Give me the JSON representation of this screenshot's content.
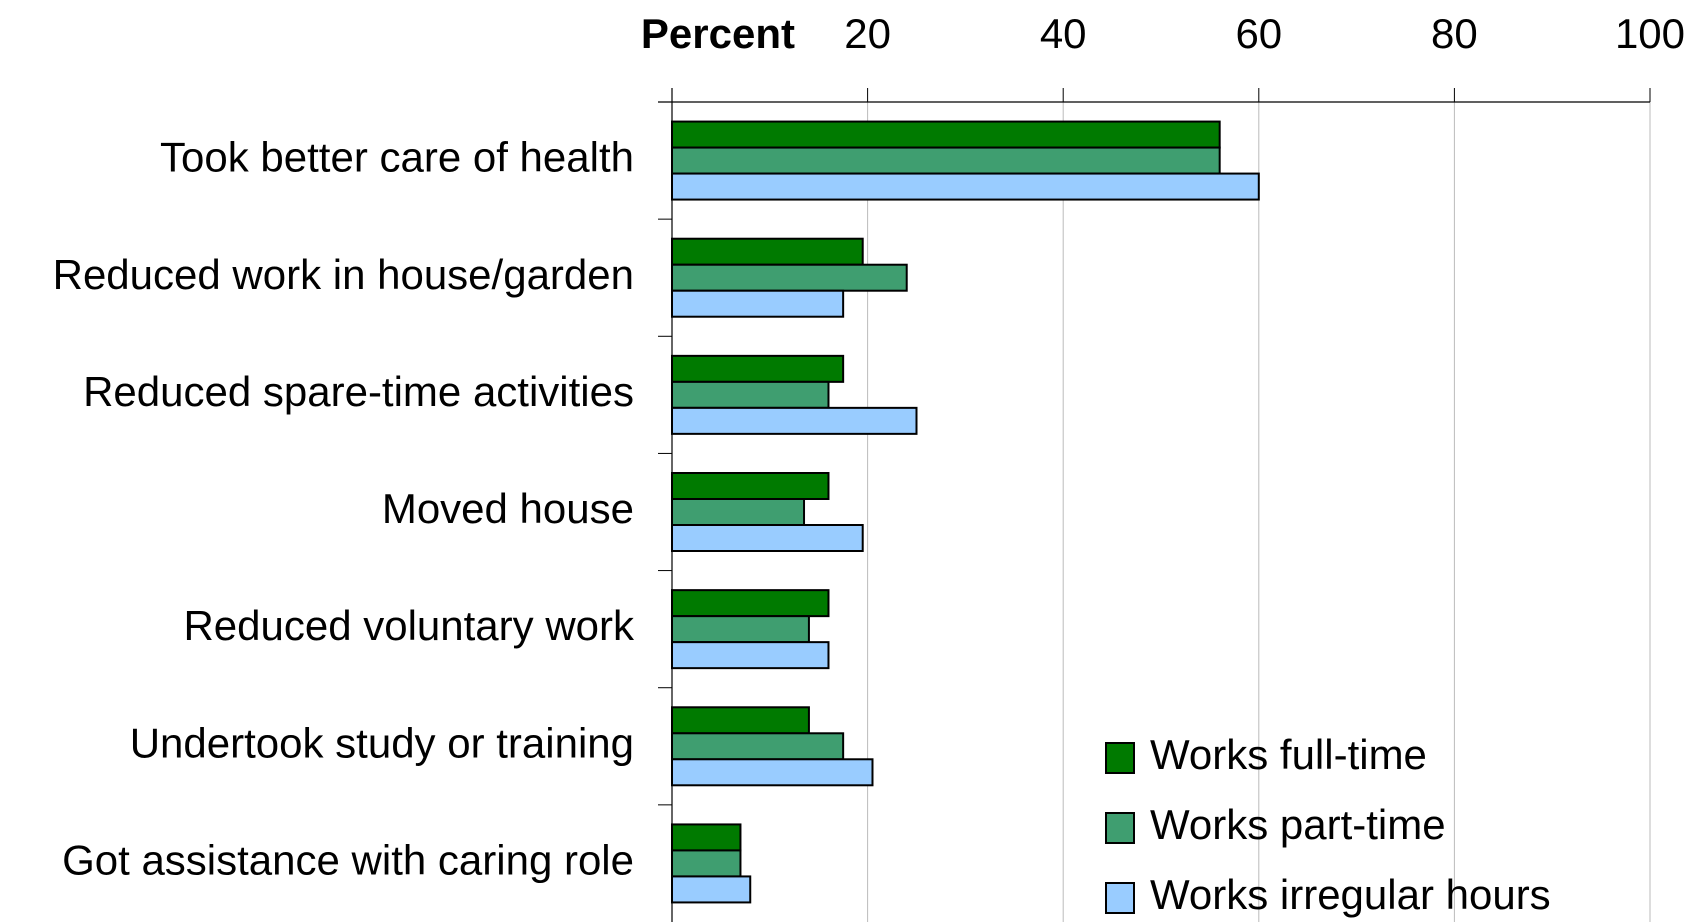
{
  "chart_data": {
    "type": "hbar",
    "xlabel": "Percent",
    "categories": [
      "Took better care of health",
      "Reduced work in house/garden",
      "Reduced spare-time activities",
      "Moved house",
      "Reduced voluntary work",
      "Undertook study or training",
      "Got assistance with caring role"
    ],
    "series": [
      {
        "name": "Works full-time",
        "color": "#007a00",
        "values": [
          56,
          19.5,
          17.5,
          16,
          16,
          14,
          7
        ]
      },
      {
        "name": "Works part-time",
        "color": "#3f9e70",
        "values": [
          56,
          24,
          16,
          13.5,
          14,
          17.5,
          7
        ]
      },
      {
        "name": "Works irregular hours",
        "color": "#99ccff",
        "values": [
          60,
          17.5,
          25,
          19.5,
          16,
          20.5,
          8
        ]
      }
    ],
    "xlim": [
      0,
      100
    ],
    "xticks": [
      20,
      40,
      60,
      80,
      100
    ],
    "grid": true
  }
}
